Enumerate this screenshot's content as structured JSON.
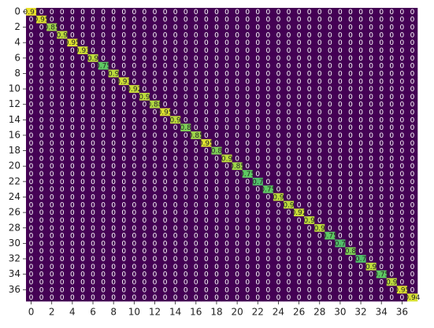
{
  "chart_data": {
    "type": "heatmap",
    "colormap": "viridis",
    "clim": [
      0,
      1
    ],
    "xticks": [
      0,
      2,
      4,
      6,
      8,
      10,
      12,
      14,
      16,
      18,
      20,
      22,
      24,
      26,
      28,
      30,
      32,
      34,
      36
    ],
    "yticks": [
      0,
      2,
      4,
      6,
      8,
      10,
      12,
      14,
      16,
      18,
      20,
      22,
      24,
      26,
      28,
      30,
      32,
      34,
      36
    ],
    "matrix": [
      [
        0.97,
        0,
        0,
        0,
        0,
        0,
        0,
        0,
        0,
        0,
        0,
        0,
        0,
        0,
        0,
        0,
        0,
        0,
        0,
        0,
        0,
        0,
        0,
        0,
        0,
        0,
        0,
        0,
        0,
        0,
        0,
        0,
        0,
        0,
        0,
        0,
        0,
        0
      ],
      [
        0,
        0.95,
        0,
        0,
        0,
        0,
        0,
        0,
        0,
        0,
        0,
        0,
        0,
        0,
        0,
        0,
        0,
        0,
        0,
        0,
        0,
        0,
        0,
        0,
        0,
        0,
        0,
        0,
        0,
        0,
        0,
        0,
        0,
        0,
        0,
        0,
        0,
        0
      ],
      [
        0,
        0,
        0.85,
        0,
        0,
        0,
        0,
        0,
        0,
        0,
        0,
        0,
        0,
        0,
        0,
        0,
        0,
        0,
        0,
        0,
        0,
        0,
        0,
        0,
        0,
        0,
        0,
        0,
        0,
        0,
        0,
        0,
        0,
        0,
        0,
        0,
        0,
        0
      ],
      [
        0,
        0,
        0,
        0.9,
        0,
        0,
        0,
        0,
        0,
        0,
        0,
        0,
        0,
        0,
        0,
        0,
        0,
        0,
        0,
        0,
        0,
        0,
        0,
        0,
        0,
        0,
        0,
        0,
        0,
        0,
        0,
        0,
        0,
        0,
        0,
        0,
        0,
        0
      ],
      [
        0,
        0,
        0,
        0,
        0.95,
        0,
        0,
        0,
        0,
        0,
        0,
        0,
        0,
        0,
        0,
        0,
        0,
        0,
        0,
        0,
        0,
        0,
        0,
        0,
        0,
        0,
        0,
        0,
        0,
        0,
        0,
        0,
        0,
        0,
        0,
        0,
        0,
        0
      ],
      [
        0,
        0,
        0,
        0,
        0,
        0.93,
        0,
        0,
        0,
        0,
        0,
        0,
        0,
        0,
        0,
        0,
        0,
        0,
        0,
        0,
        0,
        0,
        0,
        0,
        0,
        0,
        0,
        0,
        0,
        0,
        0,
        0,
        0,
        0,
        0,
        0,
        0,
        0
      ],
      [
        0,
        0,
        0,
        0,
        0,
        0,
        0.9,
        0,
        0,
        0,
        0,
        0,
        0,
        0,
        0,
        0,
        0,
        0,
        0,
        0,
        0,
        0,
        0,
        0,
        0,
        0,
        0,
        0,
        0,
        0,
        0,
        0,
        0,
        0,
        0,
        0,
        0,
        0
      ],
      [
        0,
        0,
        0,
        0,
        0,
        0,
        0,
        0.75,
        0,
        0,
        0,
        0,
        0,
        0,
        0,
        0,
        0,
        0,
        0,
        0,
        0,
        0,
        0,
        0,
        0,
        0,
        0,
        0,
        0,
        0,
        0,
        0,
        0,
        0,
        0,
        0,
        0,
        0
      ],
      [
        0,
        0,
        0,
        0,
        0,
        0,
        0,
        0,
        0.9,
        0,
        0,
        0,
        0,
        0,
        0,
        0,
        0,
        0,
        0,
        0,
        0,
        0,
        0,
        0,
        0,
        0,
        0,
        0,
        0,
        0,
        0,
        0,
        0,
        0,
        0,
        0,
        0,
        0
      ],
      [
        0,
        0,
        0,
        0,
        0,
        0,
        0,
        0,
        0,
        0.93,
        0,
        0,
        0,
        0,
        0,
        0,
        0,
        0,
        0,
        0,
        0,
        0,
        0,
        0,
        0,
        0,
        0,
        0,
        0,
        0,
        0,
        0,
        0,
        0,
        0,
        0,
        0,
        0
      ],
      [
        0,
        0,
        0,
        0,
        0,
        0,
        0,
        0,
        0,
        0,
        0.92,
        0,
        0,
        0,
        0,
        0,
        0,
        0,
        0,
        0,
        0,
        0,
        0,
        0,
        0,
        0,
        0,
        0,
        0,
        0,
        0,
        0,
        0,
        0,
        0,
        0,
        0,
        0
      ],
      [
        0,
        0,
        0,
        0,
        0,
        0,
        0,
        0,
        0,
        0,
        0,
        0.9,
        0,
        0,
        0,
        0,
        0,
        0,
        0,
        0,
        0,
        0,
        0,
        0,
        0,
        0,
        0,
        0,
        0,
        0,
        0,
        0,
        0,
        0,
        0,
        0,
        0,
        0
      ],
      [
        0,
        0,
        0,
        0,
        0,
        0,
        0,
        0,
        0,
        0,
        0,
        0,
        0.88,
        0,
        0,
        0,
        0,
        0,
        0,
        0,
        0,
        0,
        0,
        0,
        0,
        0,
        0,
        0,
        0,
        0,
        0,
        0,
        0,
        0,
        0,
        0,
        0,
        0
      ],
      [
        0,
        0,
        0,
        0,
        0,
        0,
        0,
        0,
        0,
        0,
        0,
        0,
        0,
        0.95,
        0,
        0,
        0,
        0,
        0,
        0,
        0,
        0,
        0,
        0,
        0,
        0,
        0,
        0,
        0,
        0,
        0,
        0,
        0,
        0,
        0,
        0,
        0,
        0
      ],
      [
        0,
        0,
        0,
        0,
        0,
        0,
        0,
        0,
        0,
        0,
        0,
        0,
        0,
        0,
        0.9,
        0,
        0,
        0,
        0,
        0,
        0,
        0,
        0,
        0,
        0,
        0,
        0,
        0,
        0,
        0,
        0,
        0,
        0,
        0,
        0,
        0,
        0,
        0
      ],
      [
        0,
        0,
        0,
        0,
        0,
        0,
        0,
        0,
        0,
        0,
        0,
        0,
        0,
        0,
        0,
        0.8,
        0,
        0,
        0,
        0,
        0,
        0,
        0,
        0,
        0,
        0,
        0,
        0,
        0,
        0,
        0,
        0,
        0,
        0,
        0,
        0,
        0,
        0
      ],
      [
        0,
        0,
        0,
        0,
        0,
        0,
        0,
        0,
        0,
        0,
        0,
        0,
        0,
        0,
        0,
        0,
        0.85,
        0,
        0,
        0,
        0,
        0,
        0,
        0,
        0,
        0,
        0,
        0,
        0,
        0,
        0,
        0,
        0,
        0,
        0,
        0,
        0,
        0
      ],
      [
        0,
        0,
        0,
        0,
        0,
        0,
        0,
        0,
        0,
        0,
        0,
        0,
        0,
        0,
        0,
        0,
        0,
        0.95,
        0,
        0,
        0,
        0,
        0,
        0,
        0,
        0,
        0,
        0,
        0,
        0,
        0,
        0,
        0,
        0,
        0,
        0,
        0,
        0
      ],
      [
        0,
        0,
        0,
        0,
        0,
        0,
        0,
        0,
        0,
        0,
        0,
        0,
        0,
        0,
        0,
        0,
        0,
        0,
        0.8,
        0,
        0,
        0,
        0,
        0,
        0,
        0,
        0,
        0,
        0,
        0,
        0,
        0,
        0,
        0,
        0,
        0,
        0,
        0
      ],
      [
        0,
        0,
        0,
        0,
        0,
        0,
        0,
        0,
        0,
        0,
        0,
        0,
        0,
        0,
        0,
        0,
        0,
        0,
        0,
        0.9,
        0,
        0,
        0,
        0,
        0,
        0,
        0,
        0,
        0,
        0,
        0,
        0,
        0,
        0,
        0,
        0,
        0,
        0
      ],
      [
        0,
        0,
        0,
        0,
        0,
        0,
        0,
        0,
        0,
        0,
        0,
        0,
        0,
        0,
        0,
        0,
        0,
        0,
        0,
        0,
        0.85,
        0,
        0,
        0,
        0,
        0,
        0,
        0,
        0,
        0,
        0,
        0,
        0,
        0,
        0,
        0,
        0,
        0
      ],
      [
        0,
        0,
        0,
        0,
        0,
        0,
        0,
        0,
        0,
        0,
        0,
        0,
        0,
        0,
        0,
        0,
        0,
        0,
        0,
        0,
        0,
        0.75,
        0,
        0,
        0,
        0,
        0,
        0,
        0,
        0,
        0,
        0,
        0,
        0,
        0,
        0,
        0,
        0
      ],
      [
        0,
        0,
        0,
        0,
        0,
        0,
        0,
        0,
        0,
        0,
        0,
        0,
        0,
        0,
        0,
        0,
        0,
        0,
        0,
        0,
        0,
        0,
        0.7,
        0,
        0,
        0,
        0,
        0,
        0,
        0,
        0,
        0,
        0,
        0,
        0,
        0,
        0,
        0
      ],
      [
        0,
        0,
        0,
        0,
        0,
        0,
        0,
        0,
        0,
        0,
        0,
        0,
        0,
        0,
        0,
        0,
        0,
        0,
        0,
        0,
        0,
        0,
        0,
        0.75,
        0,
        0,
        0,
        0,
        0,
        0,
        0,
        0,
        0,
        0,
        0,
        0,
        0,
        0
      ],
      [
        0,
        0,
        0,
        0,
        0,
        0,
        0,
        0,
        0,
        0,
        0,
        0,
        0,
        0,
        0,
        0,
        0,
        0,
        0,
        0,
        0,
        0,
        0,
        0,
        0.9,
        0,
        0,
        0,
        0,
        0,
        0,
        0,
        0,
        0,
        0,
        0,
        0,
        0
      ],
      [
        0,
        0,
        0,
        0,
        0,
        0,
        0,
        0,
        0,
        0,
        0,
        0,
        0,
        0,
        0,
        0,
        0,
        0,
        0,
        0,
        0,
        0,
        0,
        0,
        0,
        0.9,
        0,
        0,
        0,
        0,
        0,
        0,
        0,
        0,
        0,
        0,
        0,
        0
      ],
      [
        0,
        0,
        0,
        0,
        0,
        0,
        0,
        0,
        0,
        0,
        0,
        0,
        0,
        0,
        0,
        0,
        0,
        0,
        0,
        0,
        0,
        0,
        0,
        0,
        0,
        0,
        0.92,
        0,
        0,
        0,
        0,
        0,
        0,
        0,
        0,
        0,
        0,
        0
      ],
      [
        0,
        0,
        0,
        0,
        0,
        0,
        0,
        0,
        0,
        0,
        0,
        0,
        0,
        0,
        0,
        0,
        0,
        0,
        0,
        0,
        0,
        0,
        0,
        0,
        0,
        0,
        0,
        0.9,
        0,
        0,
        0,
        0,
        0,
        0,
        0,
        0,
        0,
        0
      ],
      [
        0,
        0,
        0,
        0,
        0,
        0,
        0,
        0,
        0,
        0,
        0,
        0,
        0,
        0,
        0,
        0,
        0,
        0,
        0,
        0,
        0,
        0,
        0,
        0,
        0,
        0,
        0,
        0,
        0.9,
        0,
        0,
        0,
        0,
        0,
        0,
        0,
        0,
        0
      ],
      [
        0,
        0,
        0,
        0,
        0,
        0,
        0,
        0,
        0,
        0,
        0,
        0,
        0,
        0,
        0,
        0,
        0,
        0,
        0,
        0,
        0,
        0,
        0,
        0,
        0,
        0,
        0,
        0,
        0,
        0.75,
        0,
        0,
        0,
        0,
        0,
        0,
        0,
        0
      ],
      [
        0,
        0,
        0,
        0,
        0,
        0,
        0,
        0,
        0,
        0,
        0,
        0,
        0,
        0,
        0,
        0,
        0,
        0,
        0,
        0,
        0,
        0,
        0,
        0,
        0,
        0,
        0,
        0,
        0,
        0,
        0.7,
        0,
        0,
        0,
        0,
        0,
        0,
        0
      ],
      [
        0,
        0,
        0,
        0,
        0,
        0,
        0,
        0,
        0,
        0,
        0,
        0,
        0,
        0,
        0,
        0,
        0,
        0,
        0,
        0,
        0,
        0,
        0,
        0,
        0,
        0,
        0,
        0,
        0,
        0,
        0,
        0.8,
        0,
        0,
        0,
        0,
        0,
        0
      ],
      [
        0,
        0,
        0,
        0,
        0,
        0,
        0,
        0,
        0,
        0,
        0,
        0,
        0,
        0,
        0,
        0,
        0,
        0,
        0,
        0,
        0,
        0,
        0,
        0,
        0,
        0,
        0,
        0,
        0,
        0,
        0,
        0,
        0.7,
        0,
        0,
        0,
        0,
        0
      ],
      [
        0,
        0,
        0,
        0,
        0,
        0,
        0,
        0,
        0,
        0,
        0,
        0,
        0,
        0,
        0,
        0,
        0,
        0,
        0,
        0,
        0,
        0,
        0,
        0,
        0,
        0,
        0,
        0,
        0,
        0,
        0,
        0,
        0,
        0.9,
        0,
        0,
        0,
        0
      ],
      [
        0,
        0,
        0,
        0,
        0,
        0,
        0,
        0,
        0,
        0,
        0,
        0,
        0,
        0,
        0,
        0,
        0,
        0,
        0,
        0,
        0,
        0,
        0,
        0,
        0,
        0,
        0,
        0,
        0,
        0,
        0,
        0,
        0,
        0,
        0.75,
        0,
        0,
        0
      ],
      [
        0,
        0,
        0,
        0,
        0,
        0,
        0,
        0,
        0,
        0,
        0,
        0,
        0,
        0,
        0,
        0,
        0,
        0,
        0,
        0,
        0,
        0,
        0,
        0,
        0,
        0,
        0,
        0,
        0,
        0,
        0,
        0,
        0,
        0,
        0,
        0.9,
        0,
        0
      ],
      [
        0,
        0,
        0,
        0,
        0,
        0,
        0,
        0,
        0,
        0,
        0,
        0,
        0,
        0,
        0,
        0,
        0,
        0,
        0,
        0,
        0,
        0,
        0,
        0,
        0,
        0,
        0,
        0,
        0,
        0,
        0,
        0,
        0,
        0,
        0,
        0,
        0.95,
        0
      ],
      [
        0,
        0,
        0,
        0,
        0,
        0,
        0,
        0,
        0,
        0,
        0,
        0,
        0,
        0,
        0,
        0,
        0,
        0,
        0,
        0,
        0,
        0,
        0,
        0,
        0,
        0,
        0,
        0,
        0,
        0,
        0,
        0,
        0,
        0,
        0,
        0,
        0,
        0.94
      ]
    ]
  }
}
